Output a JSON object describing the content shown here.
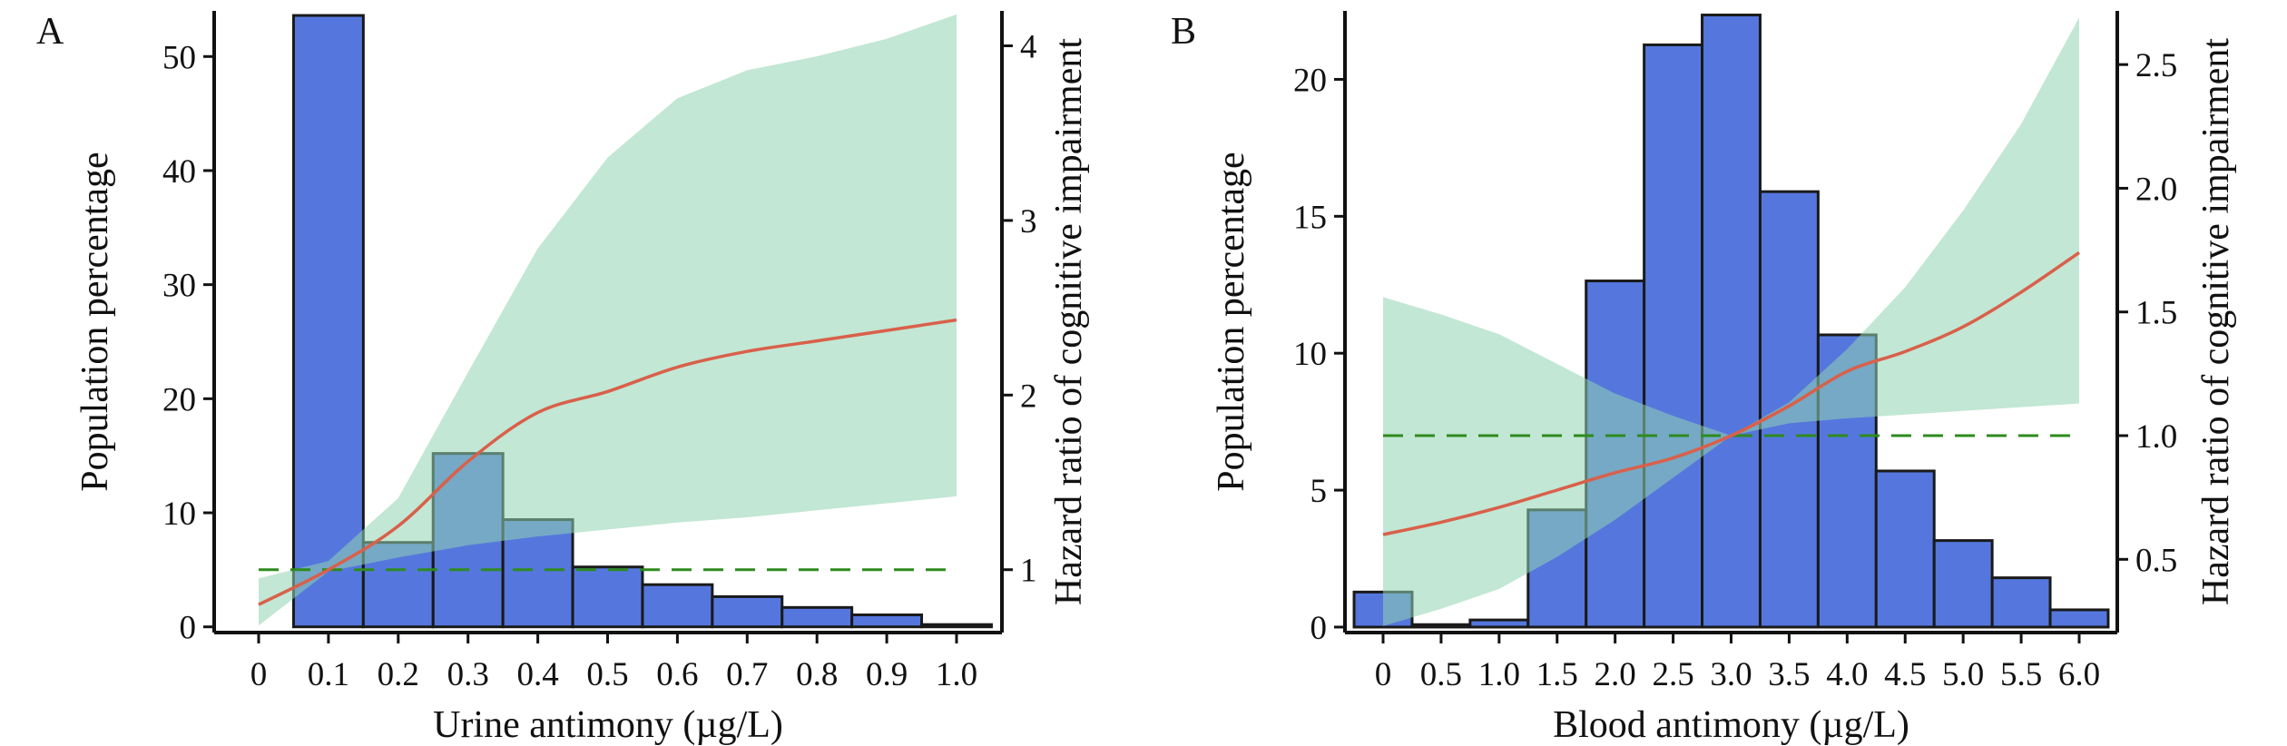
{
  "chart_data": [
    {
      "panel_label": "A",
      "type": "bar+line",
      "xlabel": "Urine antimony (µg/L)",
      "ylabel": "Population percentage",
      "y2label": "Hazard ratio of cognitive impairment",
      "xlim": [
        0,
        1.0
      ],
      "ylim": [
        -0.5,
        54.0
      ],
      "y2lim": [
        0.64,
        4.2
      ],
      "xticks": [
        0,
        0.1,
        0.2,
        0.3,
        0.4,
        0.5,
        0.6,
        0.7,
        0.8,
        0.9,
        1.0
      ],
      "xtick_labels": [
        "0",
        "0.1",
        "0.2",
        "0.3",
        "0.4",
        "0.5",
        "0.6",
        "0.7",
        "0.8",
        "0.9",
        "1.0"
      ],
      "yticks": [
        0,
        10,
        20,
        30,
        40,
        50
      ],
      "ytick_labels": [
        "0",
        "10",
        "20",
        "30",
        "40",
        "50"
      ],
      "y2ticks": [
        1,
        2,
        3,
        4
      ],
      "y2tick_labels": [
        "1",
        "2",
        "3",
        "4"
      ],
      "bin_width": 0.1,
      "bars": {
        "x": [
          0.1,
          0.2,
          0.3,
          0.4,
          0.5,
          0.6,
          0.7,
          0.8,
          0.9,
          1.0
        ],
        "values": [
          53.6,
          7.4,
          15.2,
          9.4,
          5.25,
          3.7,
          2.65,
          1.7,
          1.05,
          0.2
        ]
      },
      "hr_curve": {
        "x": [
          0,
          0.1,
          0.2,
          0.3,
          0.4,
          0.5,
          0.6,
          0.7,
          0.8,
          0.9,
          1.0
        ],
        "y": [
          0.8,
          1.0,
          1.25,
          1.62,
          1.9,
          2.02,
          2.16,
          2.25,
          2.31,
          2.37,
          2.43
        ]
      },
      "ci_lower": [
        0.68,
        0.99,
        1.07,
        1.14,
        1.19,
        1.23,
        1.27,
        1.3,
        1.34,
        1.38,
        1.42
      ],
      "ci_upper": [
        0.95,
        1.05,
        1.41,
        2.13,
        2.84,
        3.36,
        3.7,
        3.86,
        3.94,
        4.04,
        4.18
      ],
      "reference_hr": 1,
      "colors": {
        "bar": "#5577dd",
        "ci": "#8fd3b0",
        "curve": "#d9604a",
        "reference": "#2e8b1e"
      }
    },
    {
      "panel_label": "B",
      "type": "bar+line",
      "xlabel": "Blood antimony (µg/L)",
      "ylabel": "Population percentage",
      "y2label": "Hazard ratio of cognitive impairment",
      "xlim": [
        0,
        6.0
      ],
      "ylim": [
        -0.2,
        22.5
      ],
      "y2lim": [
        0.204,
        2.717
      ],
      "xticks": [
        0,
        0.5,
        1.0,
        1.5,
        2.0,
        2.5,
        3.0,
        3.5,
        4.0,
        4.5,
        5.0,
        5.5,
        6.0
      ],
      "xtick_labels": [
        "0",
        "0.5",
        "1.0",
        "1.5",
        "2.0",
        "2.5",
        "3.0",
        "3.5",
        "4.0",
        "4.5",
        "5.0",
        "5.5",
        "6.0"
      ],
      "yticks": [
        0,
        5,
        10,
        15,
        20
      ],
      "ytick_labels": [
        "0",
        "5",
        "10",
        "15",
        "20"
      ],
      "y2ticks": [
        0.5,
        1.0,
        1.5,
        2.0,
        2.5
      ],
      "y2tick_labels": [
        "0.5",
        "1.0",
        "1.5",
        "2.0",
        "2.5"
      ],
      "bin_width": 0.5,
      "bars": {
        "x": [
          0,
          0.5,
          1.0,
          1.5,
          2.0,
          2.5,
          3.0,
          3.5,
          4.0,
          4.5,
          5.0,
          5.5,
          6.0
        ],
        "values": [
          1.28,
          0.09,
          0.26,
          4.28,
          12.64,
          21.26,
          22.35,
          15.9,
          10.67,
          5.7,
          3.16,
          1.8,
          0.63
        ]
      },
      "hr_curve": {
        "x": [
          0,
          0.5,
          1.0,
          1.5,
          2.0,
          2.5,
          3.0,
          3.5,
          4.0,
          4.5,
          5.0,
          5.5,
          6.0
        ],
        "y": [
          0.6,
          0.65,
          0.71,
          0.78,
          0.85,
          0.91,
          1.0,
          1.12,
          1.26,
          1.34,
          1.44,
          1.58,
          1.74
        ]
      },
      "ci_lower": [
        0.23,
        0.3,
        0.38,
        0.51,
        0.66,
        0.83,
        1.0,
        1.05,
        1.07,
        1.085,
        1.1,
        1.115,
        1.13
      ],
      "ci_upper": [
        1.56,
        1.49,
        1.41,
        1.29,
        1.17,
        1.08,
        1.0,
        1.135,
        1.35,
        1.6,
        1.91,
        2.26,
        2.69
      ],
      "reference_hr": 1.0,
      "colors": {
        "bar": "#5577dd",
        "ci": "#8fd3b0",
        "curve": "#d9604a",
        "reference": "#2e8b1e"
      }
    }
  ]
}
